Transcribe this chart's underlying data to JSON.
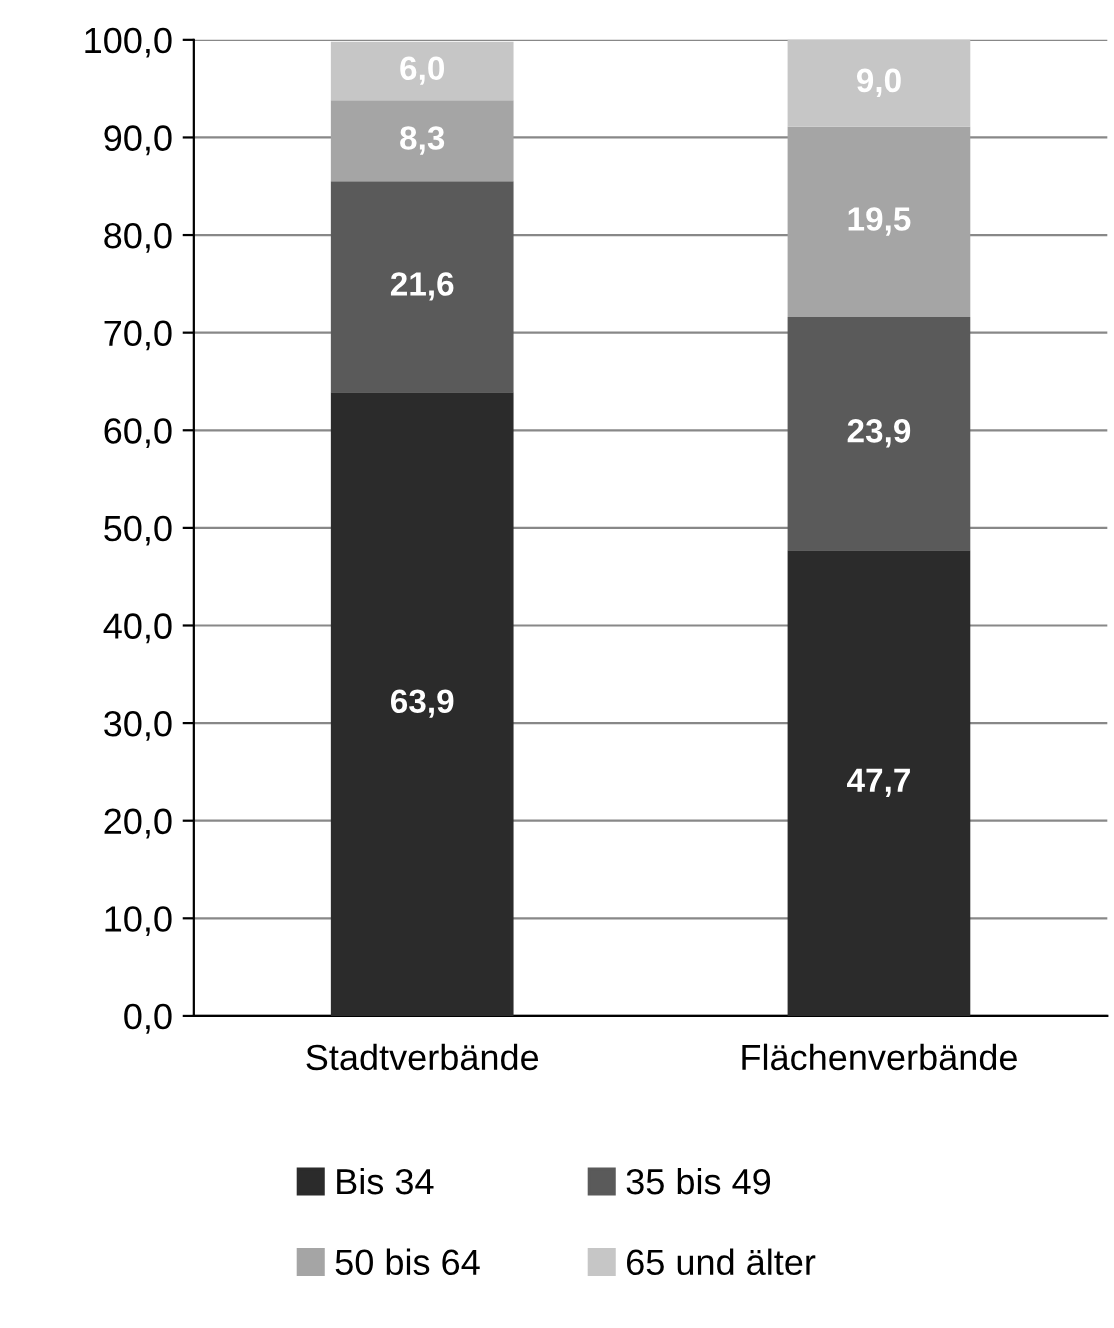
{
  "chart_data": {
    "type": "bar",
    "stacked": true,
    "categories": [
      "Stadtverbände",
      "Flächenverbände"
    ],
    "series": [
      {
        "name": "Bis 34",
        "color": "#2b2b2b",
        "values": [
          63.9,
          47.7
        ],
        "value_labels": [
          "63,9",
          "47,7"
        ]
      },
      {
        "name": "35 bis 49",
        "color": "#5a5a5a",
        "values": [
          21.6,
          23.9
        ],
        "value_labels": [
          "21,6",
          "23,9"
        ]
      },
      {
        "name": "50 bis 64",
        "color": "#a5a5a5",
        "values": [
          8.3,
          19.5
        ],
        "value_labels": [
          "8,3",
          "19,5"
        ]
      },
      {
        "name": "65 und älter",
        "color": "#c6c6c6",
        "values": [
          6.0,
          9.0
        ],
        "value_labels": [
          "6,0",
          "9,0"
        ]
      }
    ],
    "ylim": [
      0,
      100
    ],
    "yticks": [
      {
        "value": 0,
        "label": "0,0"
      },
      {
        "value": 10,
        "label": "10,0"
      },
      {
        "value": 20,
        "label": "20,0"
      },
      {
        "value": 30,
        "label": "30,0"
      },
      {
        "value": 40,
        "label": "40,0"
      },
      {
        "value": 50,
        "label": "50,0"
      },
      {
        "value": 60,
        "label": "60,0"
      },
      {
        "value": 70,
        "label": "70,0"
      },
      {
        "value": 80,
        "label": "80,0"
      },
      {
        "value": 90,
        "label": "90,0"
      },
      {
        "value": 100,
        "label": "100,0"
      }
    ],
    "grid": "y",
    "legend": "bottom"
  }
}
